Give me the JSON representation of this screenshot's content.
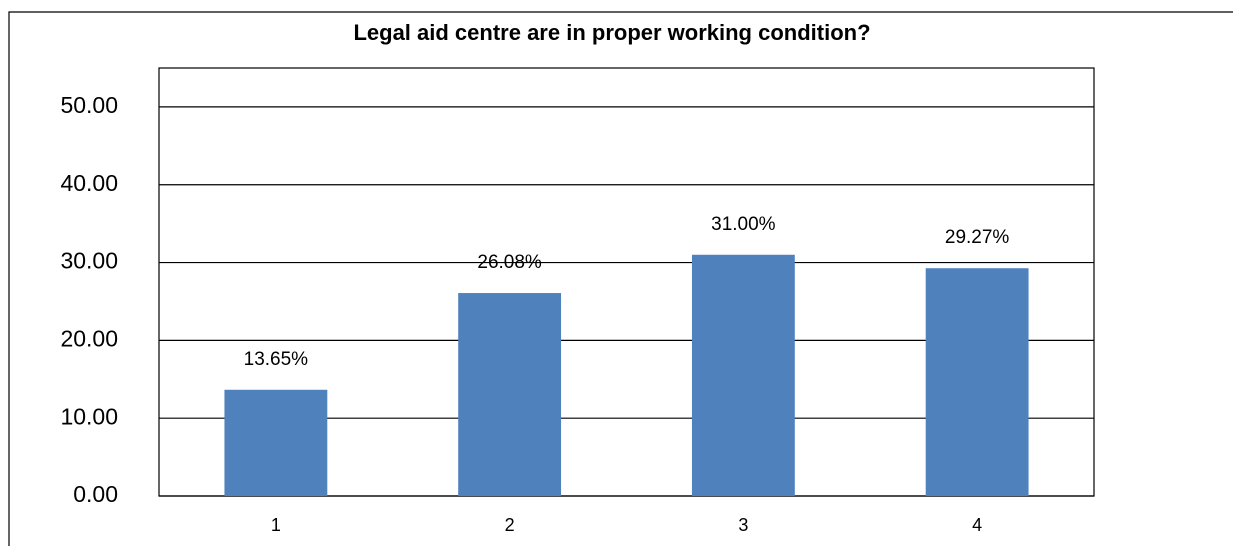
{
  "chart_data": {
    "type": "bar",
    "title": "Legal aid centre are in proper working condition?",
    "categories": [
      "1",
      "2",
      "3",
      "4"
    ],
    "values": [
      13.65,
      26.08,
      31.0,
      29.27
    ],
    "value_labels": [
      "13.65%",
      "26.08%",
      "31.00%",
      "29.27%"
    ],
    "color": "#4f81bd",
    "ylim": [
      0,
      55
    ],
    "yticks": [
      {
        "value": 0,
        "label": "0.00"
      },
      {
        "value": 10,
        "label": "10.00"
      },
      {
        "value": 20,
        "label": "20.00"
      },
      {
        "value": 30,
        "label": "30.00"
      },
      {
        "value": 40,
        "label": "40.00"
      },
      {
        "value": 50,
        "label": "50.00"
      }
    ],
    "grid": true
  }
}
